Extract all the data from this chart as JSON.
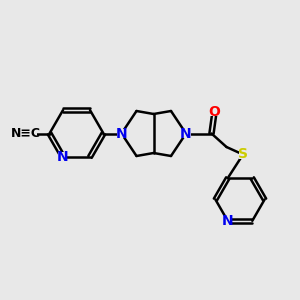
{
  "background_color": "#e8e8e8",
  "atom_colors": {
    "N": "#0000ee",
    "O": "#ff0000",
    "S": "#cccc00"
  },
  "bond_color": "#000000",
  "bond_width": 1.8,
  "figsize": [
    3.0,
    3.0
  ],
  "dpi": 100,
  "xlim": [
    0,
    10
  ],
  "ylim": [
    0,
    10
  ]
}
